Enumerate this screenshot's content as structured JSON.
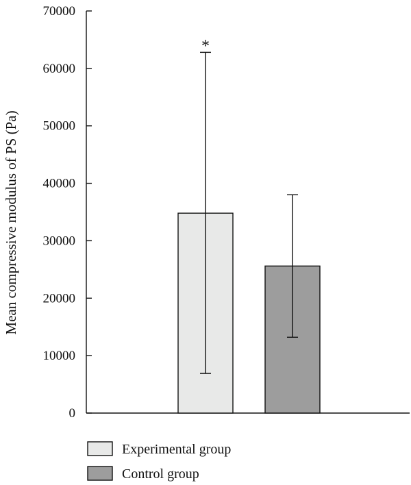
{
  "chart_data": {
    "type": "bar",
    "categories": [
      "Experimental group",
      "Control group"
    ],
    "values": [
      34800,
      25600
    ],
    "error_bars": {
      "upper": [
        62800,
        38000
      ],
      "lower": [
        6900,
        13200
      ]
    },
    "significance": [
      "*",
      ""
    ],
    "ylabel": "Mean compressive modulus of PS (Pa)",
    "xlabel": "",
    "ylim": [
      0,
      70000
    ],
    "yticks": [
      0,
      10000,
      20000,
      30000,
      40000,
      50000,
      60000,
      70000
    ],
    "colors": [
      "#e8e9e8",
      "#9d9d9d"
    ],
    "grid": false,
    "legend": {
      "position": "bottom-left",
      "entries": [
        "Experimental group",
        "Control group"
      ]
    }
  }
}
